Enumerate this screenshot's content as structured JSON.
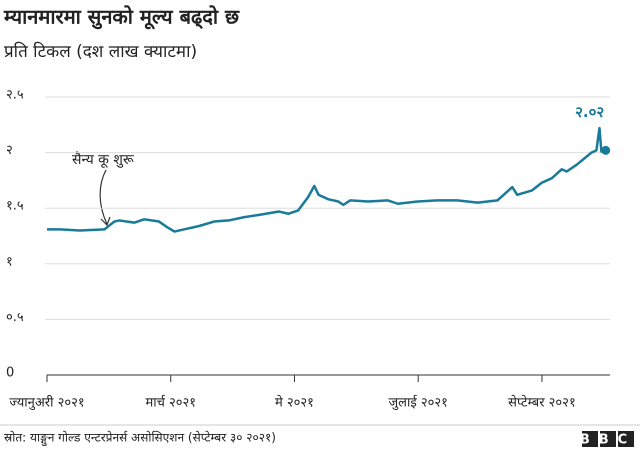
{
  "chart_data": {
    "type": "line",
    "title": "म्यानमारमा सुनको मूल्य बढ्दो छ",
    "subtitle": "प्रति टिकल (दश लाख क्याटमा)",
    "x": [
      0,
      0.21,
      0.53,
      0.93,
      1.09,
      1.17,
      1.41,
      1.57,
      1.81,
      1.94,
      2.06,
      2.22,
      2.46,
      2.7,
      2.94,
      3.19,
      3.43,
      3.75,
      3.9,
      4.06,
      4.22,
      4.32,
      4.39,
      4.55,
      4.71,
      4.79,
      4.9,
      5.19,
      5.51,
      5.67,
      5.99,
      6.31,
      6.63,
      6.96,
      7.28,
      7.44,
      7.52,
      7.6,
      7.84,
      8.0,
      8.16,
      8.32,
      8.4,
      8.56,
      8.8,
      8.88,
      8.93,
      8.96,
      9.03
    ],
    "series": [
      {
        "color": "#1a7a99",
        "values": [
          1.31,
          1.31,
          1.3,
          1.31,
          1.38,
          1.39,
          1.37,
          1.4,
          1.38,
          1.33,
          1.29,
          1.31,
          1.34,
          1.38,
          1.39,
          1.42,
          1.44,
          1.47,
          1.45,
          1.48,
          1.6,
          1.7,
          1.62,
          1.58,
          1.56,
          1.53,
          1.57,
          1.56,
          1.57,
          1.54,
          1.56,
          1.57,
          1.57,
          1.55,
          1.57,
          1.65,
          1.69,
          1.62,
          1.66,
          1.73,
          1.77,
          1.85,
          1.83,
          1.89,
          2.0,
          2.02,
          2.22,
          2.01,
          2.02
        ]
      }
    ],
    "xlim": [
      0,
      9.1
    ],
    "xticks": [
      {
        "value": 0,
        "label": "ज्यानुअरी २०२१"
      },
      {
        "value": 2,
        "label": "मार्च २०२१"
      },
      {
        "value": 4,
        "label": "मे २०२१"
      },
      {
        "value": 6,
        "label": "जुलाई २०२१"
      },
      {
        "value": 8,
        "label": "सेप्टेम्बर २०२१"
      }
    ],
    "ylim": [
      0,
      2.5
    ],
    "yticks": [
      {
        "value": 0,
        "label": "0"
      },
      {
        "value": 0.5,
        "label": "०.५"
      },
      {
        "value": 1,
        "label": "१"
      },
      {
        "value": 1.5,
        "label": "१.५"
      },
      {
        "value": 2,
        "label": "२"
      },
      {
        "value": 2.5,
        "label": "२.५"
      }
    ],
    "grid": true,
    "annotations": [
      {
        "text": "सैन्य कू शुरू"
      },
      {
        "text": "२.०२",
        "value": 2.02
      }
    ],
    "source": "स्रोत: याङ्गुन गोल्ड एन्टरप्रेनर्स असोसिएशन (सेप्टेम्बर ३० २०२१)",
    "logo": "BBC"
  }
}
